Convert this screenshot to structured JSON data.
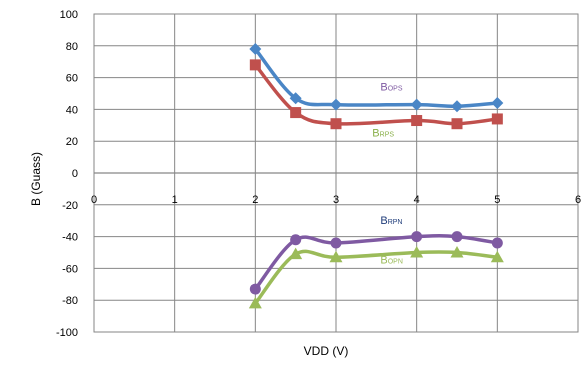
{
  "chart_data": {
    "type": "line",
    "xlabel": "VDD (V)",
    "ylabel": "B (Guass)",
    "xlim": [
      0,
      6
    ],
    "ylim": [
      -100,
      100
    ],
    "x_ticks": [
      0,
      1,
      2,
      3,
      4,
      5,
      6
    ],
    "y_ticks": [
      100,
      80,
      60,
      40,
      20,
      0,
      -20,
      -40,
      -60,
      -80,
      -100
    ],
    "grid": true,
    "x": [
      2,
      2.5,
      3,
      4,
      4.5,
      5
    ],
    "series": [
      {
        "name": "BOPS",
        "label_main": "B",
        "label_sub": "OPS",
        "color": "#4a86c6",
        "label_color": "#7f5aa2",
        "marker": "diamond",
        "values": [
          78,
          47,
          43,
          43,
          42,
          44
        ]
      },
      {
        "name": "BRPS",
        "label_main": "B",
        "label_sub": "RPS",
        "color": "#c0504d",
        "label_color": "#8ab04a",
        "marker": "square",
        "values": [
          68,
          38,
          31,
          33,
          31,
          34
        ]
      },
      {
        "name": "BRPN",
        "label_main": "B",
        "label_sub": "RPN",
        "color": "#7f5aa2",
        "label_color": "#1f3c7a",
        "marker": "circle",
        "values": [
          -73,
          -42,
          -44,
          -40,
          -40,
          -44
        ]
      },
      {
        "name": "BOPN",
        "label_main": "B",
        "label_sub": "OPN",
        "color": "#9bbb59",
        "label_color": "#9bbb59",
        "marker": "triangle",
        "values": [
          -82,
          -51,
          -53,
          -50,
          -50,
          -53
        ]
      }
    ]
  }
}
